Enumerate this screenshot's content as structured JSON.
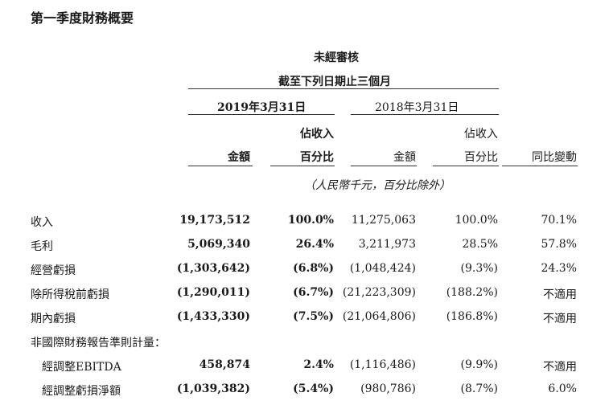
{
  "title": "第一季度財務概要",
  "header": {
    "unaudited": "未經審核",
    "period": "截至下列日期止三個月",
    "date_2019": "2019年3月31日",
    "date_2018": "2018年3月31日",
    "col_amount_2019": "金額",
    "col_pct_2019_line1": "佔收入",
    "col_pct_2019_line2": "百分比",
    "col_amount_2018": "金額",
    "col_pct_2018_line1": "佔收入",
    "col_pct_2018_line2": "百分比",
    "col_yoy": "同比變動",
    "unit_note": "（人民幣千元，百分比除外）"
  },
  "rows": [
    {
      "label": "收入",
      "amount_2019": "19,173,512",
      "pct_2019": "100.0%",
      "amount_2018": "11,275,063",
      "pct_2018": "100.0%",
      "yoy": "70.1%"
    },
    {
      "label": "毛利",
      "amount_2019": "5,069,340",
      "pct_2019": "26.4%",
      "amount_2018": "3,211,973",
      "pct_2018": "28.5%",
      "yoy": "57.8%"
    },
    {
      "label": "經營虧損",
      "amount_2019": "(1,303,642)",
      "pct_2019": "(6.8%)",
      "amount_2018": "(1,048,424)",
      "pct_2018": "(9.3%)",
      "yoy": "24.3%"
    },
    {
      "label": "除所得稅前虧損",
      "amount_2019": "(1,290,011)",
      "pct_2019": "(6.7%)",
      "amount_2018": "(21,223,309)",
      "pct_2018": "(188.2%)",
      "yoy": "不適用"
    },
    {
      "label": "期內虧損",
      "amount_2019": "(1,433,330)",
      "pct_2019": "(7.5%)",
      "amount_2018": "(21,064,806)",
      "pct_2018": "(186.8%)",
      "yoy": "不適用"
    }
  ],
  "non_ifrs_label": "非國際財務報告準則計量：",
  "sub_rows": [
    {
      "label": "經調整EBITDA",
      "amount_2019": "458,874",
      "pct_2019": "2.4%",
      "amount_2018": "(1,116,486)",
      "pct_2018": "(9.9%)",
      "yoy": "不適用"
    },
    {
      "label": "經調整虧損淨額",
      "amount_2019": "(1,039,382)",
      "pct_2019": "(5.4%)",
      "amount_2018": "(980,786)",
      "pct_2018": "(8.7%)",
      "yoy": "6.0%"
    }
  ]
}
